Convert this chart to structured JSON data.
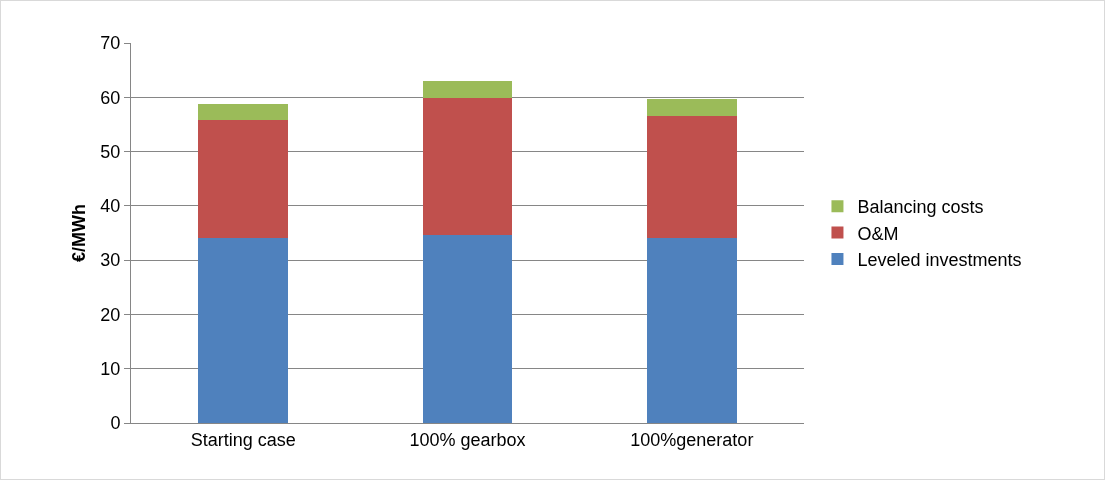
{
  "chart_data": {
    "type": "bar",
    "stacked": true,
    "ylabel": "€/MWh",
    "categories": [
      "Starting case",
      "100% gearbox",
      "100%generator"
    ],
    "series": [
      {
        "name": "Leveled investments",
        "color": "#4f81bd",
        "values": [
          34,
          34.6,
          34
        ]
      },
      {
        "name": "O&M",
        "color": "#c0504d",
        "values": [
          21.8,
          25.3,
          22.6
        ]
      },
      {
        "name": "Balancing costs",
        "color": "#9bbb59",
        "values": [
          3,
          3.1,
          3.1
        ]
      }
    ],
    "ylim": [
      0,
      70
    ],
    "yticks": [
      0,
      10,
      20,
      30,
      40,
      50,
      60,
      70
    ],
    "grid": "y",
    "legend": "right"
  }
}
